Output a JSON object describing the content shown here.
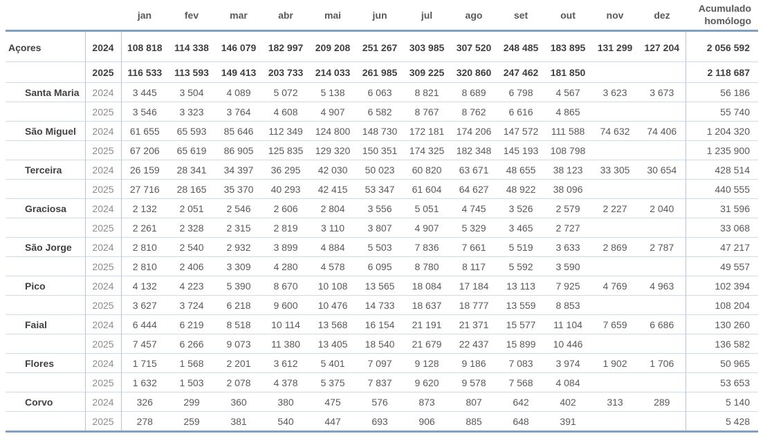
{
  "colors": {
    "accent_border": "#7f9fc3",
    "light_border": "#cbdbec",
    "vertical_border": "#afc7de",
    "header_text": "#595959",
    "data_text": "#595959",
    "bold_text": "#3f3f3f",
    "year_text": "#8c8c8c",
    "background": "#ffffff"
  },
  "chart_data": {
    "type": "table",
    "months": [
      "jan",
      "fev",
      "mar",
      "abr",
      "mai",
      "jun",
      "jul",
      "ago",
      "set",
      "out",
      "nov",
      "dez"
    ],
    "acumulado_header": {
      "line1": "Acumulado",
      "line2": "homólogo"
    },
    "groups": [
      {
        "name": "Açores",
        "total": true,
        "rows": [
          {
            "year": "2024",
            "values": [
              "108 818",
              "114 338",
              "146 079",
              "182 997",
              "209 208",
              "251 267",
              "303 985",
              "307 520",
              "248 485",
              "183 895",
              "131 299",
              "127 204"
            ],
            "acumulado": "2 056 592"
          },
          {
            "year": "2025",
            "values": [
              "116 533",
              "113 593",
              "149 413",
              "203 733",
              "214 033",
              "261 985",
              "309 225",
              "320 860",
              "247 462",
              "181 850",
              "",
              ""
            ],
            "acumulado": "2 118 687"
          }
        ]
      },
      {
        "name": "Santa Maria",
        "total": false,
        "rows": [
          {
            "year": "2024",
            "values": [
              "3 445",
              "3 504",
              "4 089",
              "5 072",
              "5 138",
              "6 063",
              "8 821",
              "8 689",
              "6 798",
              "4 567",
              "3 623",
              "3 673"
            ],
            "acumulado": "56 186"
          },
          {
            "year": "2025",
            "values": [
              "3 546",
              "3 323",
              "3 764",
              "4 608",
              "4 907",
              "6 582",
              "8 767",
              "8 762",
              "6 616",
              "4 865",
              "",
              ""
            ],
            "acumulado": "55 740"
          }
        ]
      },
      {
        "name": "São Miguel",
        "total": false,
        "rows": [
          {
            "year": "2024",
            "values": [
              "61 655",
              "65 593",
              "85 646",
              "112 349",
              "124 800",
              "148 730",
              "172 181",
              "174 206",
              "147 572",
              "111 588",
              "74 632",
              "74 406"
            ],
            "acumulado": "1 204 320"
          },
          {
            "year": "2025",
            "values": [
              "67 206",
              "65 619",
              "86 905",
              "125 835",
              "129 320",
              "150 351",
              "174 325",
              "182 348",
              "145 193",
              "108 798",
              "",
              ""
            ],
            "acumulado": "1 235 900"
          }
        ]
      },
      {
        "name": "Terceira",
        "total": false,
        "rows": [
          {
            "year": "2024",
            "values": [
              "26 159",
              "28 341",
              "34 397",
              "36 295",
              "42 030",
              "50 023",
              "60 820",
              "63 671",
              "48 655",
              "38 123",
              "33 305",
              "30 654"
            ],
            "acumulado": "428 514"
          },
          {
            "year": "2025",
            "values": [
              "27 716",
              "28 165",
              "35 370",
              "40 293",
              "42 415",
              "53 347",
              "61 604",
              "64 627",
              "48 922",
              "38 096",
              "",
              ""
            ],
            "acumulado": "440 555"
          }
        ]
      },
      {
        "name": "Graciosa",
        "total": false,
        "rows": [
          {
            "year": "2024",
            "values": [
              "2 132",
              "2 051",
              "2 546",
              "2 606",
              "2 804",
              "3 556",
              "5 051",
              "4 745",
              "3 526",
              "2 579",
              "2 227",
              "2 040"
            ],
            "acumulado": "31 596"
          },
          {
            "year": "2025",
            "values": [
              "2 261",
              "2 328",
              "2 315",
              "2 819",
              "3 110",
              "3 807",
              "4 907",
              "5 329",
              "3 465",
              "2 727",
              "",
              ""
            ],
            "acumulado": "33 068"
          }
        ]
      },
      {
        "name": "São Jorge",
        "total": false,
        "rows": [
          {
            "year": "2024",
            "values": [
              "2 810",
              "2 540",
              "2 932",
              "3 899",
              "4 884",
              "5 503",
              "7 836",
              "7 661",
              "5 519",
              "3 633",
              "2 869",
              "2 787"
            ],
            "acumulado": "47 217"
          },
          {
            "year": "2025",
            "values": [
              "2 810",
              "2 406",
              "3 309",
              "4 280",
              "4 578",
              "6 095",
              "8 780",
              "8 117",
              "5 592",
              "3 590",
              "",
              ""
            ],
            "acumulado": "49 557"
          }
        ]
      },
      {
        "name": "Pico",
        "total": false,
        "rows": [
          {
            "year": "2024",
            "values": [
              "4 132",
              "4 223",
              "5 390",
              "8 670",
              "10 108",
              "13 565",
              "18 084",
              "17 184",
              "13 113",
              "7 925",
              "4 769",
              "4 963"
            ],
            "acumulado": "102 394"
          },
          {
            "year": "2025",
            "values": [
              "3 627",
              "3 724",
              "6 218",
              "9 600",
              "10 476",
              "14 733",
              "18 637",
              "18 777",
              "13 559",
              "8 853",
              "",
              ""
            ],
            "acumulado": "108 204"
          }
        ]
      },
      {
        "name": "Faial",
        "total": false,
        "rows": [
          {
            "year": "2024",
            "values": [
              "6 444",
              "6 219",
              "8 518",
              "10 114",
              "13 568",
              "16 154",
              "21 191",
              "21 371",
              "15 577",
              "11 104",
              "7 659",
              "6 686"
            ],
            "acumulado": "130 260"
          },
          {
            "year": "2025",
            "values": [
              "7 457",
              "6 266",
              "9 073",
              "11 380",
              "13 405",
              "18 540",
              "21 679",
              "22 437",
              "15 899",
              "10 446",
              "",
              ""
            ],
            "acumulado": "136 582"
          }
        ]
      },
      {
        "name": "Flores",
        "total": false,
        "rows": [
          {
            "year": "2024",
            "values": [
              "1 715",
              "1 568",
              "2 201",
              "3 612",
              "5 401",
              "7 097",
              "9 128",
              "9 186",
              "7 083",
              "3 974",
              "1 902",
              "1 706"
            ],
            "acumulado": "50 965"
          },
          {
            "year": "2025",
            "values": [
              "1 632",
              "1 503",
              "2 078",
              "4 378",
              "5 375",
              "7 837",
              "9 620",
              "9 578",
              "7 568",
              "4 084",
              "",
              ""
            ],
            "acumulado": "53 653"
          }
        ]
      },
      {
        "name": "Corvo",
        "total": false,
        "rows": [
          {
            "year": "2024",
            "values": [
              "326",
              "299",
              "360",
              "380",
              "475",
              "576",
              "873",
              "807",
              "642",
              "402",
              "313",
              "289"
            ],
            "acumulado": "5 140"
          },
          {
            "year": "2025",
            "values": [
              "278",
              "259",
              "381",
              "540",
              "447",
              "693",
              "906",
              "885",
              "648",
              "391",
              "",
              ""
            ],
            "acumulado": "5 428"
          }
        ]
      }
    ]
  }
}
